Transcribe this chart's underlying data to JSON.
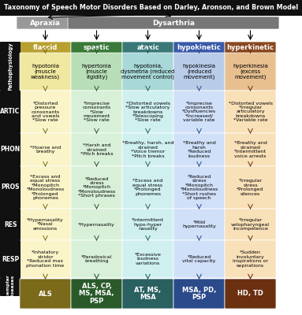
{
  "title": "Taxonomy of Speech Motor Disorders Based on Darley, Aronson, and Brown Model",
  "columns": [
    "flaccid",
    "spastic",
    "ataxic",
    "hypokinetic",
    "hyperkinetic"
  ],
  "col_dark": [
    "#7a6a1a",
    "#2a5a2a",
    "#2a6060",
    "#2a4a8a",
    "#6a3010"
  ],
  "col_mid": [
    "#b8a030",
    "#3a7a3a",
    "#3a7878",
    "#3a5aaa",
    "#8a4820"
  ],
  "col_light": [
    "#d4c060",
    "#70a870",
    "#60a8a8",
    "#70a0d0",
    "#c07840"
  ],
  "col_pale": [
    "#f0e8a0",
    "#b8deb8",
    "#a8d8d8",
    "#b8cce8",
    "#e8c090"
  ],
  "col_lighter": [
    "#faf4c8",
    "#d8f0d8",
    "#d0f0f0",
    "#d0e0f8",
    "#f8e0b8"
  ],
  "pathophys": [
    "hypotonia\n(muscle\nweakness)",
    "hypertonia\n(muscle\nrigidity)",
    "hypotonia,\ndysmetria (reduced\nmovement control)",
    "hypokinesia\n(reduced\nmovement)",
    "hyperkinesia\n(excess\nmovement)"
  ],
  "artic": [
    "*Distorted\npressure\nconsonants\nand vowels\n*Slow rate",
    "*Imprecise\nconsonants\n*Slow\nmovement\n*Slow rate",
    "*Distorted vowels\n*Slow articulatory\nbreakdowns\n*Telescoping\n*Slow rate",
    "*Imprecise\nconsonants\n*Dysfluencies\n*Increased/\nvariable rate",
    "*Distorted vowels\n*Irregular\narticulatory\nbreakdowns\n*Variable rate"
  ],
  "phon": [
    "*Hoarse and\nbreathy",
    "*Harsh and\nstrained\n*Pitch breaks",
    "*Breathy, harsh, and\nstrained\n*Voice tremor\n*Pitch breaks",
    "*Breathy and\nharsh\n*Reduced\nloudness",
    "*Breathy and\nstrained\n*Intermittent\nvoice arrests"
  ],
  "pros": [
    "*Excess and\nequal stress\n*Monopitch\n*Monoloudness\n*Prolonged\nphonemes",
    "*Reduced\nstress\n*Monopitch\n*Monoloudness\n*Short phrases",
    "*Excess and\nequal stress\n*Prolonged\nphonemes",
    "*Reduced\nstress\n*Monopitch\n*Monoloudness\n*Short rushes\nof speech",
    "*Irregular\nstress\n*Prolonged\nsilences"
  ],
  "res": [
    "*Hypernasality\n*Nasal\nemissions",
    "*Hypernasality",
    "*Intermittent\nhypo-hyper\nnasality",
    "*Mild\nhypernasality",
    "*Irregular\nvelopharyngeal\nincompetence"
  ],
  "resp": [
    "*Inhalatory\nstridor\n*Reduced max\nphonation time",
    "*Paradoxical\nbreathing",
    "*Excessive\nloudness\nvariations",
    "*Reduced\nvital capacity",
    "*Sudden\ninvoluntary\ninspirations or\nexpirations"
  ],
  "diseases": [
    "ALS",
    "ALS, CP,\nMS, MSA,\nPSP",
    "AT, MS,\nMSA",
    "MSA, PD,\nPSP",
    "HD, TD"
  ],
  "row_labels": [
    "ARTIC",
    "PHON",
    "PROS",
    "RES",
    "RESP"
  ],
  "black_bg": "#111111",
  "white": "#ffffff",
  "apraxia_color": "#888888",
  "dysarthria_color": "#666666"
}
